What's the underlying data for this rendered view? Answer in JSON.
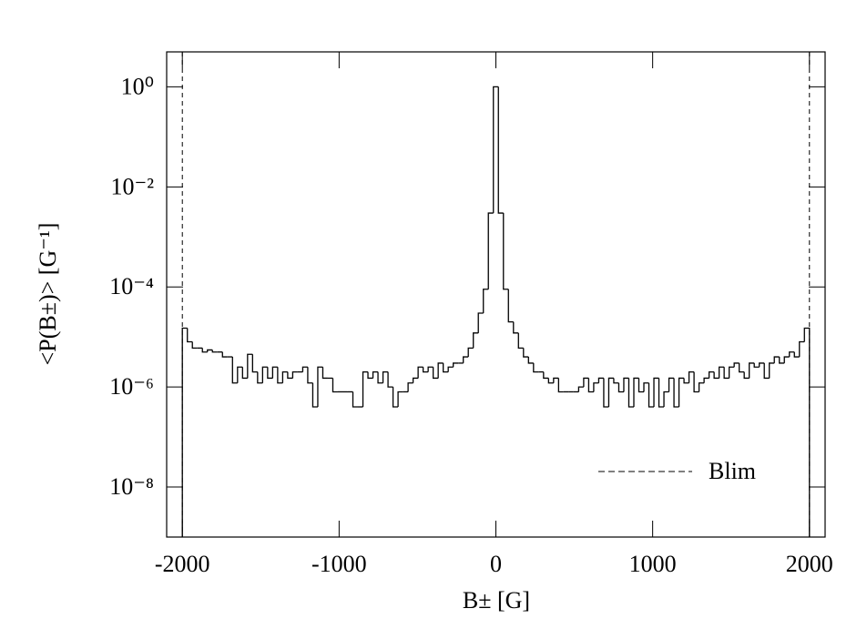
{
  "chart_data": {
    "type": "histogram",
    "xlabel": "B± [G]",
    "ylabel": "<P(B±)> [G⁻¹]",
    "xlim": [
      -2100,
      2100
    ],
    "ylim": [
      1e-09,
      5
    ],
    "log_y": true,
    "xticks": [
      -2000,
      -1000,
      0,
      1000,
      2000
    ],
    "yticks": [
      {
        "value": 1,
        "label": "10⁰"
      },
      {
        "value": 0.01,
        "label": "10⁻²"
      },
      {
        "value": 0.0001,
        "label": "10⁻⁴"
      },
      {
        "value": 1e-06,
        "label": "10⁻⁶"
      },
      {
        "value": 1e-08,
        "label": "10⁻⁸"
      }
    ],
    "color": "#000000",
    "bins": [
      -2000,
      -1968,
      -1936,
      -1904,
      -1872,
      -1840,
      -1808,
      -1776,
      -1744,
      -1712,
      -1680,
      -1648,
      -1616,
      -1584,
      -1552,
      -1520,
      -1488,
      -1456,
      -1424,
      -1392,
      -1360,
      -1328,
      -1296,
      -1264,
      -1232,
      -1200,
      -1168,
      -1136,
      -1104,
      -1072,
      -1040,
      -1008,
      -976,
      -944,
      -912,
      -880,
      -848,
      -816,
      -784,
      -752,
      -720,
      -688,
      -656,
      -624,
      -592,
      -560,
      -528,
      -496,
      -464,
      -432,
      -400,
      -368,
      -336,
      -304,
      -272,
      -240,
      -208,
      -176,
      -144,
      -112,
      -80,
      -48,
      -16,
      16,
      48,
      80,
      112,
      144,
      176,
      208,
      240,
      272,
      304,
      336,
      368,
      400,
      432,
      464,
      496,
      528,
      560,
      592,
      624,
      656,
      688,
      720,
      752,
      784,
      816,
      848,
      880,
      912,
      944,
      976,
      1008,
      1040,
      1072,
      1104,
      1136,
      1168,
      1200,
      1232,
      1264,
      1296,
      1328,
      1360,
      1392,
      1424,
      1456,
      1488,
      1520,
      1552,
      1584,
      1616,
      1648,
      1680,
      1712,
      1744,
      1776,
      1808,
      1840,
      1872,
      1904,
      1936,
      1968,
      2000
    ],
    "values": [
      1.5e-05,
      8e-06,
      6e-06,
      6e-06,
      5e-06,
      5.5e-06,
      5e-06,
      5e-06,
      4e-06,
      4e-06,
      1.2e-06,
      2.5e-06,
      1.5e-06,
      4.5e-06,
      2e-06,
      1.2e-06,
      2.5e-06,
      1.5e-06,
      2.5e-06,
      1.2e-06,
      2e-06,
      1.5e-06,
      2e-06,
      2e-06,
      2.5e-06,
      1.2e-06,
      4e-07,
      2.5e-06,
      1.5e-06,
      1.5e-06,
      8e-07,
      8e-07,
      8e-07,
      8e-07,
      4e-07,
      4e-07,
      2e-06,
      1.5e-06,
      2e-06,
      1.2e-06,
      2e-06,
      1e-06,
      4e-07,
      8e-07,
      8e-07,
      1.2e-06,
      1.5e-06,
      2.5e-06,
      2e-06,
      2.5e-06,
      1.5e-06,
      3e-06,
      2e-06,
      2.5e-06,
      3e-06,
      3e-06,
      4e-06,
      6e-06,
      1.2e-05,
      3e-05,
      9e-05,
      0.003,
      1,
      0.003,
      9e-05,
      2e-05,
      1.2e-05,
      6e-06,
      4e-06,
      3e-06,
      2e-06,
      2e-06,
      1.5e-06,
      1.2e-06,
      1.5e-06,
      8e-07,
      8e-07,
      8e-07,
      8e-07,
      1e-06,
      1.5e-06,
      8e-07,
      1.2e-06,
      1.5e-06,
      4e-07,
      1.5e-06,
      1.2e-06,
      8e-07,
      1.5e-06,
      4e-07,
      1.5e-06,
      8e-07,
      1.2e-06,
      4e-07,
      1.5e-06,
      4e-07,
      8e-07,
      1.5e-06,
      4e-07,
      1.5e-06,
      1.2e-06,
      2e-06,
      8e-07,
      1.2e-06,
      1.5e-06,
      2e-06,
      1.5e-06,
      2.5e-06,
      1.5e-06,
      2.5e-06,
      3e-06,
      2e-06,
      1.5e-06,
      3e-06,
      2.5e-06,
      3e-06,
      1.5e-06,
      3e-06,
      4e-06,
      3e-06,
      4e-06,
      5e-06,
      4e-06,
      8e-06,
      1.5e-05
    ],
    "limits": {
      "name": "Blim",
      "values": [
        -2000,
        2000
      ],
      "color": "#000000"
    },
    "legend": "lower right"
  }
}
